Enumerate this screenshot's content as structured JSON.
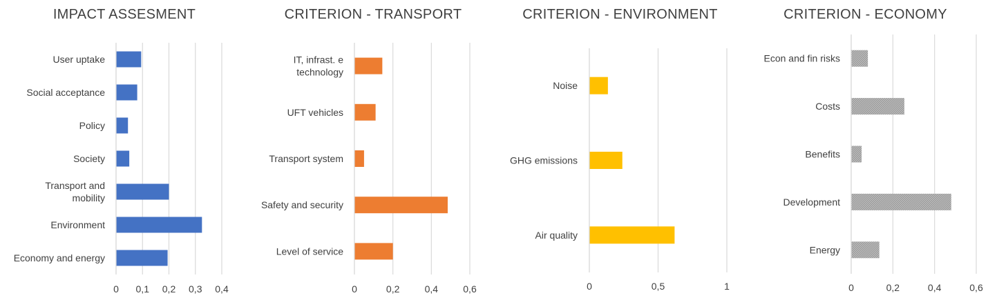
{
  "chart_data": [
    {
      "type": "bar",
      "orientation": "horizontal",
      "title": "IMPACT ASSESMENT",
      "categories": [
        "User uptake",
        "Social acceptance",
        "Policy",
        "Society",
        "Transport and mobility",
        "Environment",
        "Economy and energy"
      ],
      "values": [
        0.095,
        0.08,
        0.045,
        0.05,
        0.2,
        0.325,
        0.195
      ],
      "xlim": [
        0,
        0.4
      ],
      "xticks": [
        "0",
        "0,1",
        "0,2",
        "0,3",
        "0,4"
      ],
      "grid": true,
      "color": "#4472C4"
    },
    {
      "type": "bar",
      "orientation": "horizontal",
      "title": "CRITERION - TRANSPORT",
      "categories": [
        "IT, infrast. e technology",
        "UFT vehicles",
        "Transport system",
        "Safety and security",
        "Level of service"
      ],
      "values": [
        0.145,
        0.11,
        0.05,
        0.485,
        0.2
      ],
      "xlim": [
        0,
        0.6
      ],
      "xticks": [
        "0",
        "0,2",
        "0,4",
        "0,6"
      ],
      "grid": true,
      "color": "#ED7D31"
    },
    {
      "type": "bar",
      "orientation": "horizontal",
      "title": "CRITERION - ENVIRONMENT",
      "categories": [
        "Noise",
        "GHG emissions",
        "Air quality"
      ],
      "values": [
        0.135,
        0.24,
        0.62
      ],
      "xlim": [
        0,
        1
      ],
      "xticks": [
        "0",
        "0,5",
        "1"
      ],
      "grid": true,
      "color": "#FFC000"
    },
    {
      "type": "bar",
      "orientation": "horizontal",
      "title": "CRITERION - ECONOMY",
      "categories": [
        "Econ and fin risks",
        "Costs",
        "Benefits",
        "Development",
        "Energy"
      ],
      "values": [
        0.08,
        0.255,
        0.05,
        0.48,
        0.135
      ],
      "xlim": [
        0,
        0.6
      ],
      "xticks": [
        "0",
        "0,2",
        "0,4",
        "0,6"
      ],
      "grid": true,
      "color": "#A5A5A5",
      "pattern": "hatched"
    }
  ]
}
